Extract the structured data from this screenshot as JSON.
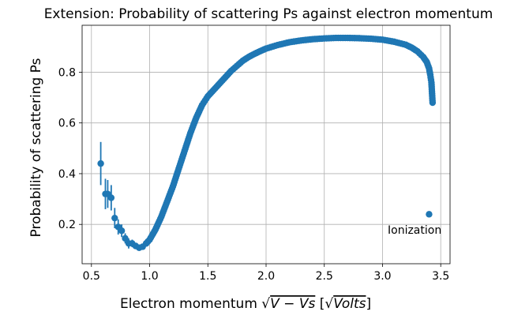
{
  "chart_data": {
    "type": "scatter",
    "title": "Extension: Probability of scattering Ps against electron momentum",
    "xlabel": "Electron momentum √V − Vs [√Volts]",
    "xlabel_parts": {
      "prefix": "Electron momentum ",
      "radicand": "V − Vs",
      "unit_open": " [",
      "unit_radicand": "Volts",
      "unit_close": "]"
    },
    "ylabel": "Probability of scattering Ps",
    "xlim": [
      0.42,
      3.58
    ],
    "ylim": [
      0.045,
      0.985
    ],
    "xticks": [
      0.5,
      1.0,
      1.5,
      2.0,
      2.5,
      3.0,
      3.5
    ],
    "xtick_labels": [
      "0.5",
      "1.0",
      "1.5",
      "2.0",
      "2.5",
      "3.0",
      "3.5"
    ],
    "yticks": [
      0.2,
      0.4,
      0.6,
      0.8
    ],
    "ytick_labels": [
      "0.2",
      "0.4",
      "0.6",
      "0.8"
    ],
    "grid": true,
    "marker_color": "#1f77b4",
    "annotations": [
      {
        "text": "Ionization",
        "x": 3.04,
        "y": 0.17
      }
    ],
    "errorbar_points": [
      {
        "x": 0.58,
        "y": 0.44,
        "err": 0.085
      },
      {
        "x": 0.62,
        "y": 0.32,
        "err": 0.06
      },
      {
        "x": 0.64,
        "y": 0.32,
        "err": 0.055
      },
      {
        "x": 0.67,
        "y": 0.305,
        "err": 0.05
      },
      {
        "x": 0.7,
        "y": 0.225,
        "err": 0.04
      },
      {
        "x": 0.73,
        "y": 0.19,
        "err": 0.03
      },
      {
        "x": 0.76,
        "y": 0.175,
        "err": 0.025
      },
      {
        "x": 0.79,
        "y": 0.145,
        "err": 0.02
      },
      {
        "x": 0.82,
        "y": 0.125,
        "err": 0.02
      },
      {
        "x": 0.85,
        "y": 0.125,
        "err": 0.015
      },
      {
        "x": 0.88,
        "y": 0.115,
        "err": 0.01
      },
      {
        "x": 0.91,
        "y": 0.108,
        "err": 0.008
      },
      {
        "x": 0.94,
        "y": 0.112,
        "err": 0.006
      },
      {
        "x": 0.97,
        "y": 0.125,
        "err": 0.005
      }
    ],
    "curve_points": [
      [
        1.0,
        0.14
      ],
      [
        1.05,
        0.18
      ],
      [
        1.1,
        0.23
      ],
      [
        1.15,
        0.29
      ],
      [
        1.2,
        0.35
      ],
      [
        1.25,
        0.42
      ],
      [
        1.3,
        0.49
      ],
      [
        1.35,
        0.56
      ],
      [
        1.4,
        0.62
      ],
      [
        1.45,
        0.67
      ],
      [
        1.5,
        0.705
      ],
      [
        1.55,
        0.73
      ],
      [
        1.6,
        0.755
      ],
      [
        1.65,
        0.78
      ],
      [
        1.7,
        0.805
      ],
      [
        1.75,
        0.825
      ],
      [
        1.8,
        0.845
      ],
      [
        1.85,
        0.86
      ],
      [
        1.9,
        0.872
      ],
      [
        1.95,
        0.883
      ],
      [
        2.0,
        0.893
      ],
      [
        2.1,
        0.907
      ],
      [
        2.2,
        0.918
      ],
      [
        2.3,
        0.925
      ],
      [
        2.4,
        0.93
      ],
      [
        2.5,
        0.933
      ],
      [
        2.6,
        0.935
      ],
      [
        2.7,
        0.935
      ],
      [
        2.8,
        0.934
      ],
      [
        2.9,
        0.932
      ],
      [
        3.0,
        0.928
      ],
      [
        3.1,
        0.92
      ],
      [
        3.2,
        0.908
      ],
      [
        3.25,
        0.897
      ],
      [
        3.3,
        0.882
      ],
      [
        3.35,
        0.86
      ],
      [
        3.38,
        0.84
      ],
      [
        3.4,
        0.815
      ],
      [
        3.41,
        0.79
      ],
      [
        3.42,
        0.76
      ],
      [
        3.43,
        0.68
      ]
    ],
    "outlier_points": [
      {
        "x": 3.4,
        "y": 0.24
      }
    ]
  }
}
